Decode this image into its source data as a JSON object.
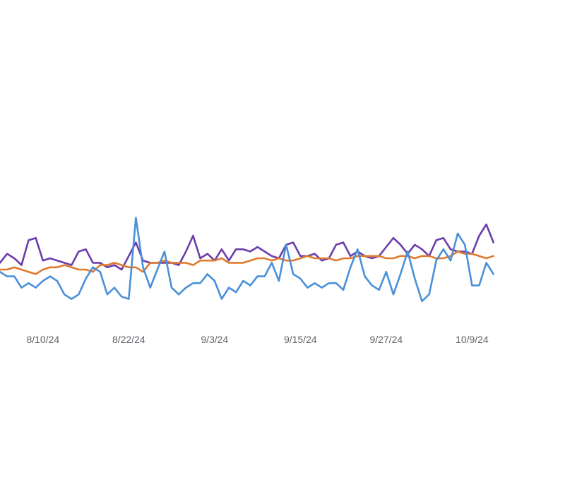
{
  "chart_data": {
    "type": "line",
    "x_start": "2024-08-04",
    "x_step_days": 1,
    "x_ticks": [
      "8/10/24",
      "8/22/24",
      "9/3/24",
      "9/15/24",
      "9/27/24",
      "10/9/24"
    ],
    "xlim": [
      "2024-08-04",
      "2024-10-22"
    ],
    "ylim": [
      0,
      100
    ],
    "grid": false,
    "legend": "none",
    "series": [
      {
        "color": "#6a3eaa",
        "values": [
          43,
          47,
          45,
          42,
          53,
          54,
          44,
          45,
          44,
          43,
          42,
          48,
          49,
          43,
          43,
          41,
          42,
          40,
          46,
          52,
          44,
          43,
          43,
          43,
          43,
          42,
          48,
          55,
          45,
          47,
          44,
          49,
          44,
          49,
          49,
          48,
          50,
          48,
          46,
          45,
          51,
          52,
          46,
          46,
          47,
          44,
          45,
          51,
          52,
          46,
          48,
          46,
          45,
          46,
          50,
          54,
          51,
          47,
          51,
          49,
          46,
          53,
          54,
          49,
          48,
          48,
          47,
          55,
          60,
          52
        ]
      },
      {
        "color": "#e07a2e",
        "values": [
          40,
          40,
          41,
          40,
          39,
          38,
          40,
          41,
          41,
          42,
          41,
          40,
          40,
          39,
          42,
          42,
          43,
          42,
          41,
          41,
          39,
          43,
          43,
          44,
          43,
          43,
          43,
          42,
          44,
          44,
          44,
          45,
          43,
          43,
          43,
          44,
          45,
          45,
          44,
          45,
          44,
          44,
          45,
          46,
          45,
          45,
          45,
          44,
          45,
          45,
          46,
          46,
          46,
          46,
          45,
          45,
          46,
          46,
          45,
          46,
          46,
          45,
          45,
          46,
          48,
          47,
          47,
          46,
          45,
          46
        ]
      },
      {
        "color": "#4a90d9",
        "values": [
          39,
          37,
          37,
          32,
          34,
          32,
          35,
          37,
          35,
          29,
          27,
          29,
          36,
          41,
          39,
          29,
          32,
          28,
          27,
          63,
          41,
          32,
          40,
          48,
          32,
          29,
          32,
          34,
          34,
          38,
          35,
          27,
          32,
          30,
          35,
          33,
          37,
          37,
          43,
          35,
          51,
          38,
          36,
          32,
          34,
          32,
          34,
          34,
          31,
          41,
          49,
          37,
          33,
          31,
          39,
          29,
          38,
          48,
          36,
          26,
          29,
          44,
          49,
          44,
          56,
          51,
          33,
          33,
          43,
          38
        ]
      }
    ]
  }
}
